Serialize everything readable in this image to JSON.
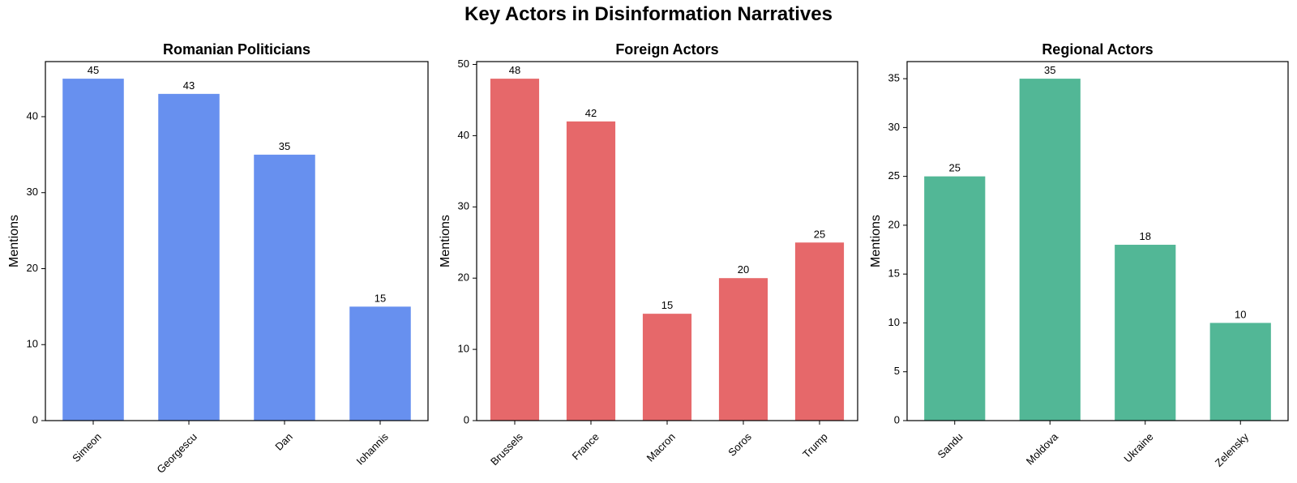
{
  "figure": {
    "title": "Key Actors in Disinformation Narratives"
  },
  "chart_data": [
    {
      "type": "bar",
      "title": "Romanian Politicians",
      "xlabel": "",
      "ylabel": "Mentions",
      "categories": [
        "Simeon",
        "Georgescu",
        "Dan",
        "Iohannis"
      ],
      "values": [
        45,
        43,
        35,
        15
      ],
      "ylim": [
        0,
        47.25
      ],
      "yticks": [
        0,
        10,
        20,
        30,
        40
      ],
      "color": "#6790ef",
      "grid": false,
      "legend": "none"
    },
    {
      "type": "bar",
      "title": "Foreign Actors",
      "xlabel": "",
      "ylabel": "Mentions",
      "categories": [
        "Brussels",
        "France",
        "Macron",
        "Soros",
        "Trump"
      ],
      "values": [
        48,
        42,
        15,
        20,
        25
      ],
      "ylim": [
        0,
        50.4
      ],
      "yticks": [
        0,
        10,
        20,
        30,
        40,
        50
      ],
      "color": "#e6686a",
      "grid": false,
      "legend": "none"
    },
    {
      "type": "bar",
      "title": "Regional Actors",
      "xlabel": "",
      "ylabel": "Mentions",
      "categories": [
        "Sandu",
        "Moldova",
        "Ukraine",
        "Zelensky"
      ],
      "values": [
        25,
        35,
        18,
        10
      ],
      "ylim": [
        0,
        36.75
      ],
      "yticks": [
        0,
        5,
        10,
        15,
        20,
        25,
        30,
        35
      ],
      "color": "#52b796",
      "grid": false,
      "legend": "none"
    }
  ]
}
